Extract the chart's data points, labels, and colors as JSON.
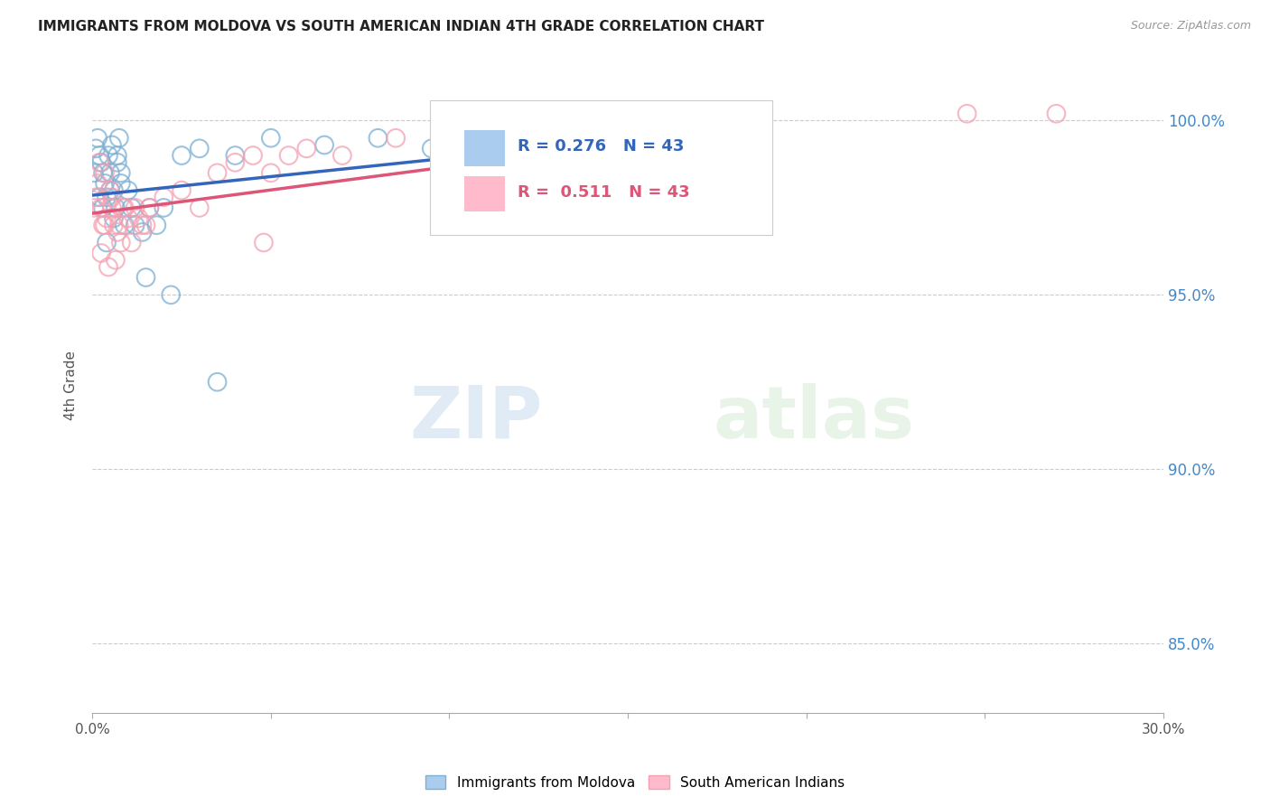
{
  "title": "IMMIGRANTS FROM MOLDOVA VS SOUTH AMERICAN INDIAN 4TH GRADE CORRELATION CHART",
  "source": "Source: ZipAtlas.com",
  "ylabel": "4th Grade",
  "xlim": [
    0.0,
    30.0
  ],
  "ylim": [
    83.0,
    101.8
  ],
  "x_ticks": [
    0.0,
    5.0,
    10.0,
    15.0,
    20.0,
    25.0,
    30.0
  ],
  "x_tick_labels": [
    "0.0%",
    "",
    "",
    "",
    "",
    "",
    "30.0%"
  ],
  "y_ticks": [
    85.0,
    90.0,
    95.0,
    100.0
  ],
  "y_tick_labels": [
    "85.0%",
    "90.0%",
    "95.0%",
    "100.0%"
  ],
  "legend_label_bottom": [
    "Immigrants from Moldova",
    "South American Indians"
  ],
  "blue_R": "0.276",
  "pink_R": "0.511",
  "N": "43",
  "blue_color": "#7BAFD4",
  "pink_color": "#F4A0B0",
  "blue_line_color": "#3366BB",
  "pink_line_color": "#DD5577",
  "watermark_zip": "ZIP",
  "watermark_atlas": "atlas",
  "blue_x": [
    0.05,
    0.1,
    0.15,
    0.2,
    0.25,
    0.3,
    0.35,
    0.4,
    0.45,
    0.5,
    0.55,
    0.6,
    0.65,
    0.7,
    0.75,
    0.8,
    0.9,
    1.0,
    1.1,
    1.2,
    1.4,
    1.6,
    1.8,
    2.0,
    0.2,
    0.3,
    0.4,
    0.5,
    0.6,
    0.7,
    0.8,
    2.5,
    3.0,
    4.0,
    5.0,
    6.5,
    8.0,
    9.5,
    11.0,
    12.5,
    1.5,
    2.2,
    3.5
  ],
  "blue_y": [
    98.5,
    99.2,
    99.5,
    99.0,
    98.8,
    97.5,
    98.2,
    97.8,
    99.0,
    98.5,
    99.3,
    98.0,
    97.5,
    99.0,
    99.5,
    98.5,
    97.0,
    98.0,
    97.5,
    97.0,
    96.8,
    97.5,
    97.0,
    97.5,
    97.8,
    98.5,
    96.5,
    98.0,
    97.2,
    98.8,
    98.2,
    99.0,
    99.2,
    99.0,
    99.5,
    99.3,
    99.5,
    99.2,
    99.5,
    99.3,
    95.5,
    95.0,
    92.5
  ],
  "pink_x": [
    0.05,
    0.1,
    0.15,
    0.2,
    0.25,
    0.3,
    0.35,
    0.4,
    0.5,
    0.55,
    0.6,
    0.7,
    0.8,
    0.9,
    1.0,
    1.2,
    1.4,
    1.6,
    2.0,
    2.5,
    3.0,
    3.5,
    4.0,
    4.5,
    5.0,
    5.5,
    6.0,
    7.0,
    8.5,
    10.0,
    0.25,
    0.35,
    0.45,
    0.55,
    0.65,
    0.75,
    0.85,
    1.1,
    1.3,
    1.5,
    4.8,
    24.5,
    27.0
  ],
  "pink_y": [
    97.5,
    97.8,
    98.2,
    98.8,
    97.5,
    97.0,
    98.5,
    97.2,
    98.0,
    97.5,
    97.0,
    96.8,
    96.5,
    97.5,
    97.2,
    97.5,
    97.0,
    97.5,
    97.8,
    98.0,
    97.5,
    98.5,
    98.8,
    99.0,
    98.5,
    99.0,
    99.2,
    99.0,
    99.5,
    99.2,
    96.2,
    97.0,
    95.8,
    97.8,
    96.0,
    97.0,
    97.5,
    96.5,
    97.2,
    97.0,
    96.5,
    100.2,
    100.2
  ],
  "background_color": "#FFFFFF",
  "grid_color": "#CCCCCC"
}
